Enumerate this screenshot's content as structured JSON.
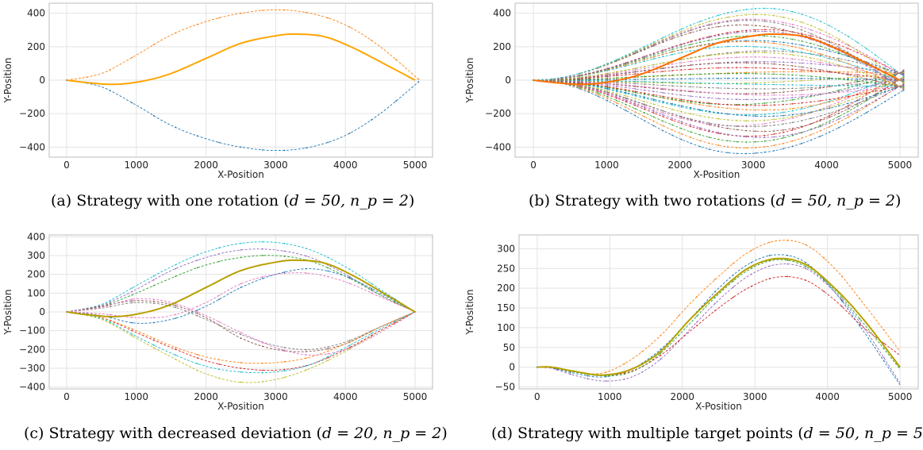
{
  "chart_data": [
    {
      "type": "line",
      "xlabel": "X-Position",
      "ylabel": "Y-Position",
      "xlim": [
        -250,
        5250
      ],
      "ylim": [
        -460,
        460
      ],
      "xticks": [
        0,
        1000,
        2000,
        3000,
        4000,
        5000
      ],
      "yticks": [
        -400,
        -200,
        0,
        200,
        400
      ],
      "grid": true,
      "caption": {
        "prefix": "(a) Strategy with one rotation (",
        "math": "d = 50, n_p = 2",
        "suffix": ")"
      },
      "main_path": {
        "color": "#ffa500",
        "x": [
          0,
          300,
          700,
          1100,
          1500,
          2000,
          2500,
          3000,
          3300,
          3700,
          4100,
          4500,
          5000
        ],
        "y": [
          0,
          -15,
          -25,
          -5,
          40,
          130,
          220,
          265,
          275,
          260,
          195,
          110,
          0
        ]
      },
      "series": [
        {
          "color": "#ff7f0e",
          "x": [
            0,
            500,
            1000,
            1500,
            2000,
            2500,
            3000,
            3500,
            4000,
            4500,
            5050
          ],
          "y": [
            0,
            40,
            150,
            270,
            350,
            400,
            420,
            400,
            330,
            200,
            5
          ]
        },
        {
          "color": "#1f77b4",
          "x": [
            0,
            500,
            1000,
            1500,
            2000,
            2500,
            3000,
            3500,
            4000,
            4500,
            5050
          ],
          "y": [
            0,
            -40,
            -150,
            -270,
            -350,
            -400,
            -420,
            -400,
            -330,
            -200,
            -10
          ]
        }
      ]
    },
    {
      "type": "line",
      "xlabel": "X-Position",
      "ylabel": "Y-Position",
      "xlim": [
        -250,
        5250
      ],
      "ylim": [
        -460,
        460
      ],
      "xticks": [
        0,
        1000,
        2000,
        3000,
        4000,
        5000
      ],
      "yticks": [
        -400,
        -200,
        0,
        200,
        400
      ],
      "grid": true,
      "caption": {
        "prefix": "(b) Strategy with two rotations (",
        "math": "d = 50, n_p = 2",
        "suffix": ")"
      },
      "main_path": {
        "color": "#ff6f00",
        "x": [
          0,
          300,
          700,
          1100,
          1500,
          2000,
          2500,
          3000,
          3300,
          3700,
          4100,
          4500,
          5000
        ],
        "y": [
          0,
          -15,
          -25,
          -5,
          40,
          130,
          220,
          265,
          275,
          260,
          195,
          110,
          0
        ]
      },
      "fan": {
        "count": 40,
        "amp_min": -420,
        "amp_max": 420,
        "peak_min": 2800,
        "peak_max": 3200,
        "end_spread": 60
      }
    },
    {
      "type": "line",
      "xlabel": "X-Position",
      "ylabel": "Y-Position",
      "xlim": [
        -250,
        5250
      ],
      "ylim": [
        -410,
        410
      ],
      "xticks": [
        0,
        1000,
        2000,
        3000,
        4000,
        5000
      ],
      "yticks": [
        -400,
        -300,
        -200,
        -100,
        0,
        100,
        200,
        300,
        400
      ],
      "grid": true,
      "caption": {
        "prefix": "(c) Strategy with decreased deviation (",
        "math": "d = 20, n_p = 2",
        "suffix": ")"
      },
      "main_path": {
        "color": "#b8a000",
        "x": [
          0,
          300,
          700,
          1100,
          1500,
          2000,
          2500,
          3000,
          3300,
          3700,
          4100,
          4500,
          5000
        ],
        "y": [
          0,
          -15,
          -25,
          -5,
          40,
          130,
          220,
          265,
          275,
          260,
          195,
          110,
          0
        ]
      },
      "series": [
        {
          "color": "#17becf",
          "x": [
            0,
            500,
            1000,
            1500,
            2000,
            2500,
            3000,
            3500,
            4000,
            4500,
            5000
          ],
          "y": [
            0,
            40,
            140,
            240,
            320,
            365,
            370,
            330,
            240,
            120,
            0
          ]
        },
        {
          "color": "#9467bd",
          "x": [
            0,
            500,
            1000,
            1500,
            2000,
            2500,
            3000,
            3500,
            4000,
            4500,
            5000
          ],
          "y": [
            0,
            35,
            120,
            220,
            290,
            330,
            330,
            290,
            200,
            90,
            0
          ]
        },
        {
          "color": "#2ca02c",
          "x": [
            0,
            500,
            1000,
            1500,
            2000,
            2500,
            3000,
            3500,
            4000,
            4500,
            5000
          ],
          "y": [
            0,
            30,
            100,
            180,
            250,
            290,
            300,
            270,
            190,
            90,
            0
          ]
        },
        {
          "color": "#e377c2",
          "x": [
            0,
            500,
            1000,
            1500,
            2000,
            2500,
            3000,
            3500,
            4000,
            4500,
            5000
          ],
          "y": [
            0,
            -10,
            -30,
            -20,
            50,
            150,
            200,
            205,
            160,
            80,
            0
          ]
        },
        {
          "color": "#8c564b",
          "x": [
            0,
            500,
            1000,
            1500,
            2000,
            2500,
            3000,
            3500,
            4000,
            4500,
            5000
          ],
          "y": [
            0,
            30,
            60,
            40,
            -30,
            -140,
            -200,
            -210,
            -170,
            -80,
            0
          ]
        },
        {
          "color": "#7f7f7f",
          "x": [
            0,
            500,
            1000,
            1500,
            2000,
            2500,
            3000,
            3500,
            4000,
            4500,
            5000
          ],
          "y": [
            0,
            20,
            50,
            30,
            -40,
            -120,
            -180,
            -200,
            -160,
            -80,
            0
          ]
        },
        {
          "color": "#bcbd22",
          "x": [
            0,
            500,
            1000,
            1500,
            2000,
            2500,
            3000,
            3500,
            4000,
            4500,
            5000
          ],
          "y": [
            0,
            -40,
            -140,
            -240,
            -330,
            -375,
            -360,
            -300,
            -210,
            -100,
            0
          ]
        },
        {
          "color": "#d62728",
          "x": [
            0,
            500,
            1000,
            1500,
            2000,
            2500,
            3000,
            3500,
            4000,
            4500,
            5000
          ],
          "y": [
            0,
            -30,
            -110,
            -190,
            -260,
            -300,
            -310,
            -280,
            -200,
            -100,
            0
          ]
        },
        {
          "color": "#ff7f0e",
          "x": [
            0,
            500,
            1000,
            1500,
            2000,
            2500,
            3000,
            3500,
            4000,
            4500,
            5000
          ],
          "y": [
            0,
            -30,
            -100,
            -180,
            -240,
            -270,
            -270,
            -240,
            -170,
            -80,
            0
          ]
        },
        {
          "color": "#1f77b4",
          "x": [
            0,
            500,
            1000,
            1500,
            2000,
            2500,
            3000,
            3500,
            4000,
            4500,
            5000
          ],
          "y": [
            0,
            -20,
            -60,
            -40,
            30,
            130,
            200,
            230,
            190,
            100,
            0
          ]
        },
        {
          "color": "#17becf",
          "x": [
            0,
            500,
            1000,
            1500,
            2000,
            2500,
            3000,
            3500,
            4000,
            4500,
            5000
          ],
          "y": [
            0,
            -35,
            -130,
            -220,
            -290,
            -320,
            -320,
            -280,
            -190,
            -90,
            0
          ]
        },
        {
          "color": "#e377c2",
          "x": [
            0,
            500,
            1000,
            1500,
            2000,
            2500,
            3000,
            3500,
            4000,
            4500,
            5000
          ],
          "y": [
            0,
            25,
            70,
            50,
            -20,
            -110,
            -190,
            -230,
            -200,
            -110,
            0
          ]
        }
      ]
    },
    {
      "type": "line",
      "xlabel": "X-Position",
      "ylabel": "Y-Position",
      "xlim": [
        -250,
        5250
      ],
      "ylim": [
        -55,
        335
      ],
      "xticks": [
        0,
        1000,
        2000,
        3000,
        4000,
        5000
      ],
      "yticks": [
        -50,
        0,
        50,
        100,
        150,
        200,
        250,
        300
      ],
      "grid": true,
      "caption": {
        "prefix": "(d) Strategy with multiple target points (",
        "math": "d = 50, n_p = 5",
        "suffix": ")"
      },
      "main_path": {
        "color": "#b8a000",
        "x": [
          0,
          200,
          500,
          900,
          1300,
          1700,
          2100,
          2500,
          2900,
          3300,
          3700,
          4100,
          4500,
          5000
        ],
        "y": [
          0,
          0,
          -10,
          -20,
          -5,
          40,
          120,
          190,
          250,
          275,
          260,
          200,
          120,
          0
        ]
      },
      "series": [
        {
          "color": "#ff7f0e",
          "x": [
            0,
            200,
            500,
            900,
            1300,
            1700,
            2100,
            2500,
            2900,
            3300,
            3700,
            4100,
            4500,
            5000
          ],
          "y": [
            0,
            -2,
            -12,
            -15,
            20,
            80,
            160,
            230,
            290,
            320,
            310,
            250,
            160,
            40
          ]
        },
        {
          "color": "#1f77b4",
          "x": [
            0,
            200,
            500,
            900,
            1300,
            1700,
            2100,
            2500,
            2900,
            3300,
            3700,
            4100,
            4500,
            5000
          ],
          "y": [
            0,
            -2,
            -15,
            -25,
            -5,
            45,
            120,
            200,
            260,
            285,
            265,
            190,
            90,
            -45
          ]
        },
        {
          "color": "#9467bd",
          "x": [
            0,
            200,
            500,
            900,
            1300,
            1700,
            2100,
            2500,
            2900,
            3300,
            3700,
            4100,
            4500,
            5000
          ],
          "y": [
            0,
            -3,
            -20,
            -35,
            -25,
            20,
            95,
            170,
            230,
            260,
            250,
            190,
            100,
            -40
          ]
        },
        {
          "color": "#d62728",
          "x": [
            0,
            200,
            500,
            900,
            1300,
            1700,
            2100,
            2500,
            2900,
            3300,
            3700,
            4100,
            4500,
            5000
          ],
          "y": [
            0,
            -1,
            -10,
            -20,
            -10,
            30,
            90,
            150,
            200,
            228,
            220,
            170,
            100,
            30
          ]
        },
        {
          "color": "#2ca02c",
          "x": [
            0,
            200,
            500,
            900,
            1300,
            1700,
            2100,
            2500,
            2900,
            3300,
            3700,
            4100,
            4500,
            5000
          ],
          "y": [
            0,
            -1,
            -12,
            -22,
            -12,
            35,
            110,
            185,
            245,
            272,
            255,
            195,
            110,
            -5
          ]
        }
      ]
    }
  ]
}
